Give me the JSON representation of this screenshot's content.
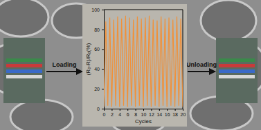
{
  "chart_data": {
    "type": "line",
    "x_label": "Cycles",
    "y_label": "(R₀-R)/R₀(%)",
    "annotations": [
      "Loading",
      "Unloading"
    ],
    "x": [
      0,
      0.5,
      1,
      1.5,
      2,
      2.5,
      3,
      3.5,
      4,
      4.5,
      5,
      5.5,
      6,
      6.5,
      7,
      7.5,
      8,
      8.5,
      9,
      9.5,
      10,
      10.5,
      11,
      11.5,
      12,
      12.5,
      13,
      13.5,
      14,
      14.5,
      15,
      15.5,
      16,
      16.5,
      17,
      17.5,
      18,
      18.5,
      19,
      19.5,
      20
    ],
    "series": [
      {
        "color": "#f0913a",
        "values": [
          2,
          88,
          3,
          92,
          2,
          90,
          3,
          93,
          2,
          91,
          3,
          94,
          2,
          92,
          3,
          90,
          2,
          93,
          3,
          91,
          2,
          92,
          3,
          94,
          2,
          90,
          3,
          89,
          2,
          93,
          3,
          91,
          2,
          92,
          3,
          90,
          2,
          93,
          3,
          91,
          2
        ]
      }
    ],
    "xlim": [
      0,
      20
    ],
    "xticks": [
      0,
      2,
      4,
      6,
      8,
      10,
      12,
      14,
      16,
      18,
      20
    ],
    "ylim": [
      0,
      100
    ],
    "yticks": [
      0,
      20,
      40,
      60,
      80,
      100
    ]
  }
}
